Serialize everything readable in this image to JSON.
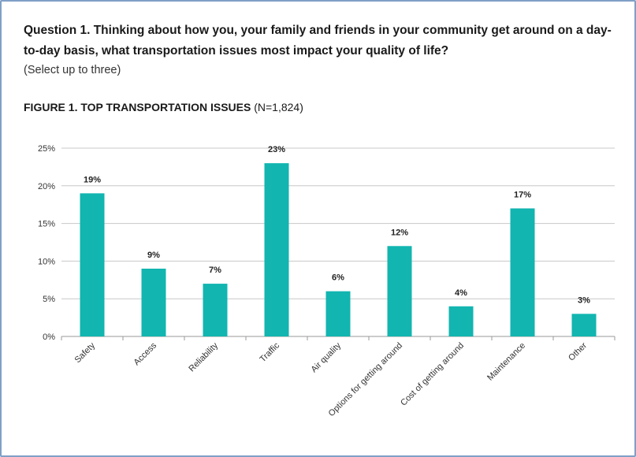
{
  "question": {
    "text": "Question 1. Thinking about how you, your family and friends in your community get around on a day-to-day basis, what transportation issues most impact your quality of life?",
    "instruction": "(Select up to three)"
  },
  "figure": {
    "title": "FIGURE 1. TOP TRANSPORTATION ISSUES",
    "n_label": "(N=1,824)"
  },
  "colors": {
    "bar": "#12b5b0",
    "grid": "#c8c8c8",
    "axis": "#9a9a9a",
    "frame": "#7f9fc6"
  },
  "chart_data": {
    "type": "bar",
    "title": "FIGURE 1. TOP TRANSPORTATION ISSUES (N=1,824)",
    "xlabel": "",
    "ylabel": "",
    "categories": [
      "Safety",
      "Access",
      "Reliability",
      "Traffic",
      "Air quality",
      "Options for getting around",
      "Cost of getting around",
      "Maintenance",
      "Other"
    ],
    "values": [
      19,
      9,
      7,
      23,
      6,
      12,
      4,
      17,
      3
    ],
    "data_labels": [
      "19%",
      "9%",
      "7%",
      "23%",
      "6%",
      "12%",
      "4%",
      "17%",
      "3%"
    ],
    "ylim": [
      0,
      25
    ],
    "yticks": [
      0,
      5,
      10,
      15,
      20,
      25
    ],
    "ytick_labels": [
      "0%",
      "5%",
      "10%",
      "15%",
      "20%",
      "25%"
    ],
    "grid": true,
    "legend": "none"
  }
}
